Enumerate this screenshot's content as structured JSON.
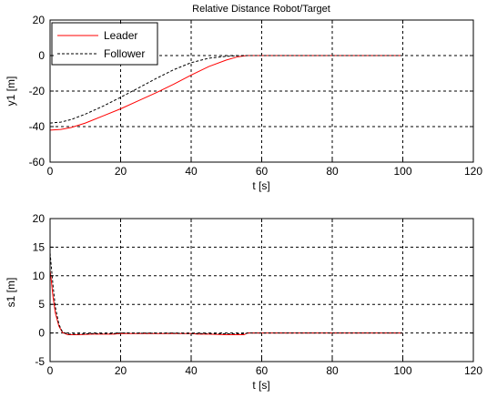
{
  "chart_data": [
    {
      "type": "line",
      "title": "Relative Distance Robot/Target",
      "xlabel": "t [s]",
      "ylabel": "y1 [m]",
      "xlim": [
        0,
        120
      ],
      "ylim": [
        -60,
        20
      ],
      "xticks": [
        0,
        20,
        40,
        60,
        80,
        100,
        120
      ],
      "yticks": [
        -60,
        -40,
        -20,
        0,
        20
      ],
      "grid": true,
      "legend": "top-left",
      "series": [
        {
          "name": "Leader",
          "color": "#ff0000",
          "dash": "solid",
          "x": [
            0,
            3,
            6,
            10,
            15,
            20,
            25,
            30,
            35,
            40,
            45,
            50,
            53,
            55,
            56,
            60,
            100
          ],
          "y": [
            -42,
            -41.6,
            -40.5,
            -38,
            -34,
            -30,
            -25.5,
            -21,
            -16.2,
            -11,
            -6.2,
            -2.5,
            -0.8,
            -0.2,
            0,
            0,
            0
          ]
        },
        {
          "name": "Follower",
          "color": "#000000",
          "dash": "dashed",
          "x": [
            0,
            3,
            6,
            10,
            15,
            20,
            25,
            30,
            35,
            40,
            45,
            50,
            53,
            56,
            60,
            100
          ],
          "y": [
            -38,
            -37.5,
            -36,
            -33,
            -28.5,
            -23.5,
            -18.3,
            -13,
            -8,
            -4,
            -1.5,
            -0.4,
            -0.1,
            0,
            0,
            0
          ]
        }
      ]
    },
    {
      "type": "line",
      "title": "",
      "xlabel": "t [s]",
      "ylabel": "s1 [m]",
      "xlim": [
        0,
        120
      ],
      "ylim": [
        -5,
        20
      ],
      "xticks": [
        0,
        20,
        40,
        60,
        80,
        100,
        120
      ],
      "yticks": [
        -5,
        0,
        5,
        10,
        15,
        20
      ],
      "grid": true,
      "series": [
        {
          "name": "Leader",
          "color": "#ff0000",
          "dash": "solid",
          "x": [
            0,
            0.3,
            0.8,
            1.5,
            2.5,
            3.5,
            5,
            8,
            12,
            18,
            20,
            25,
            35,
            40,
            42,
            45,
            50,
            55,
            56,
            60,
            100
          ],
          "y": [
            11,
            9.5,
            6.5,
            3.5,
            1.2,
            0.1,
            -0.3,
            -0.3,
            -0.2,
            -0.2,
            -0.1,
            -0.1,
            -0.1,
            -0.1,
            -0.2,
            -0.2,
            -0.3,
            -0.3,
            0,
            0,
            0
          ]
        },
        {
          "name": "Follower",
          "color": "#000000",
          "dash": "dashed",
          "x": [
            0,
            0.3,
            0.8,
            1.5,
            2.5,
            3.5,
            5,
            8,
            12,
            18,
            20,
            25,
            35,
            40,
            45,
            50,
            55,
            56,
            60,
            100
          ],
          "y": [
            14,
            12,
            8.5,
            4.5,
            1.5,
            0.2,
            -0.2,
            -0.2,
            -0.1,
            -0.1,
            0,
            -0.05,
            -0.05,
            -0.1,
            -0.1,
            -0.15,
            -0.15,
            0,
            0,
            0
          ]
        }
      ]
    }
  ]
}
